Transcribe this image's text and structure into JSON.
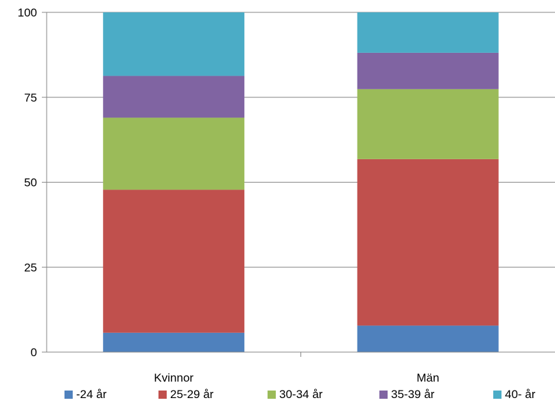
{
  "chart_data": {
    "type": "bar",
    "stacked": true,
    "categories": [
      "Kvinnor",
      "Män"
    ],
    "series": [
      {
        "name": "-24 år",
        "values": [
          5.7,
          7.8
        ],
        "color": "#4F81BD"
      },
      {
        "name": "25-29 år",
        "values": [
          42.1,
          49.0
        ],
        "color": "#C0504D"
      },
      {
        "name": "30-34 år",
        "values": [
          21.2,
          20.6
        ],
        "color": "#9BBB59"
      },
      {
        "name": "35-39 år",
        "values": [
          12.3,
          10.7
        ],
        "color": "#8064A2"
      },
      {
        "name": "40- år",
        "values": [
          18.7,
          11.9
        ],
        "color": "#4BACC6"
      }
    ],
    "ylim": [
      0,
      100
    ],
    "yticks": [
      0,
      25,
      50,
      75,
      100
    ],
    "grid": true,
    "legend_position": "bottom"
  }
}
